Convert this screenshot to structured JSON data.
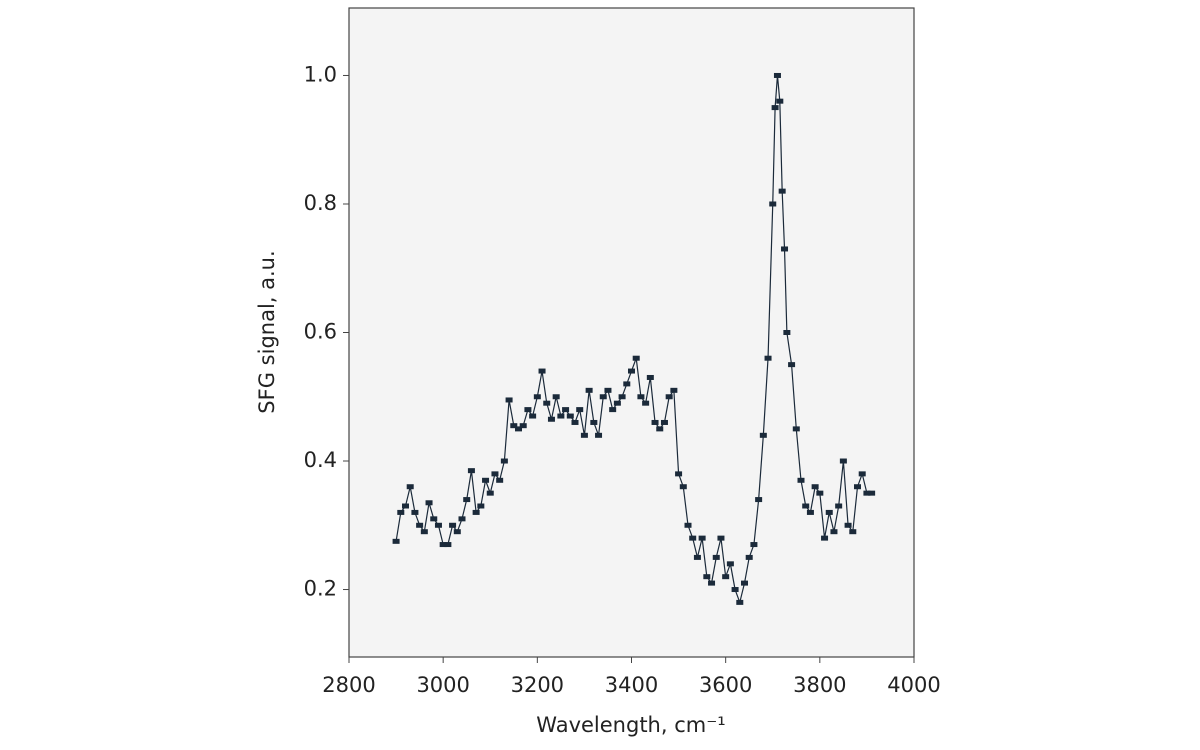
{
  "chart_data": {
    "type": "line",
    "x_label": "Wavelength, cm⁻¹",
    "y_label": "SFG signal, a.u.",
    "x": [
      2900,
      2910,
      2920,
      2930,
      2940,
      2950,
      2960,
      2970,
      2980,
      2990,
      3000,
      3010,
      3020,
      3030,
      3040,
      3050,
      3060,
      3070,
      3080,
      3090,
      3100,
      3110,
      3120,
      3130,
      3140,
      3150,
      3160,
      3170,
      3180,
      3190,
      3200,
      3210,
      3220,
      3230,
      3240,
      3250,
      3260,
      3270,
      3280,
      3290,
      3300,
      3310,
      3320,
      3330,
      3340,
      3350,
      3360,
      3370,
      3380,
      3390,
      3400,
      3410,
      3420,
      3430,
      3440,
      3450,
      3460,
      3470,
      3480,
      3490,
      3500,
      3510,
      3520,
      3530,
      3540,
      3550,
      3560,
      3570,
      3580,
      3590,
      3600,
      3610,
      3620,
      3630,
      3640,
      3650,
      3660,
      3670,
      3680,
      3690,
      3700,
      3705,
      3710,
      3715,
      3720,
      3725,
      3730,
      3740,
      3750,
      3760,
      3770,
      3780,
      3790,
      3800,
      3810,
      3820,
      3830,
      3840,
      3850,
      3860,
      3870,
      3880,
      3890,
      3900,
      3910
    ],
    "values": [
      0.275,
      0.32,
      0.33,
      0.36,
      0.32,
      0.3,
      0.29,
      0.335,
      0.31,
      0.3,
      0.27,
      0.27,
      0.3,
      0.29,
      0.31,
      0.34,
      0.385,
      0.32,
      0.33,
      0.37,
      0.35,
      0.38,
      0.37,
      0.4,
      0.495,
      0.455,
      0.45,
      0.455,
      0.48,
      0.47,
      0.5,
      0.54,
      0.49,
      0.465,
      0.5,
      0.47,
      0.48,
      0.47,
      0.46,
      0.48,
      0.44,
      0.51,
      0.46,
      0.44,
      0.5,
      0.51,
      0.48,
      0.49,
      0.5,
      0.52,
      0.54,
      0.56,
      0.5,
      0.49,
      0.53,
      0.46,
      0.45,
      0.46,
      0.5,
      0.51,
      0.38,
      0.36,
      0.3,
      0.28,
      0.25,
      0.28,
      0.22,
      0.21,
      0.25,
      0.28,
      0.22,
      0.24,
      0.2,
      0.18,
      0.21,
      0.25,
      0.27,
      0.34,
      0.44,
      0.56,
      0.8,
      0.95,
      1.0,
      0.96,
      0.82,
      0.73,
      0.6,
      0.55,
      0.45,
      0.37,
      0.33,
      0.32,
      0.36,
      0.35,
      0.28,
      0.32,
      0.29,
      0.33,
      0.4,
      0.3,
      0.29,
      0.36,
      0.38,
      0.35,
      0.35
    ],
    "color": "#1b2a3a",
    "xlim": [
      2800,
      4000
    ],
    "xticks": [
      2800,
      3000,
      3200,
      3400,
      3600,
      3800,
      4000
    ],
    "ylim": [
      0.095,
      1.105
    ],
    "yticks": [
      0.2,
      0.4,
      0.6,
      0.8,
      {
        "value": 1,
        "label": "1.0"
      }
    ]
  }
}
